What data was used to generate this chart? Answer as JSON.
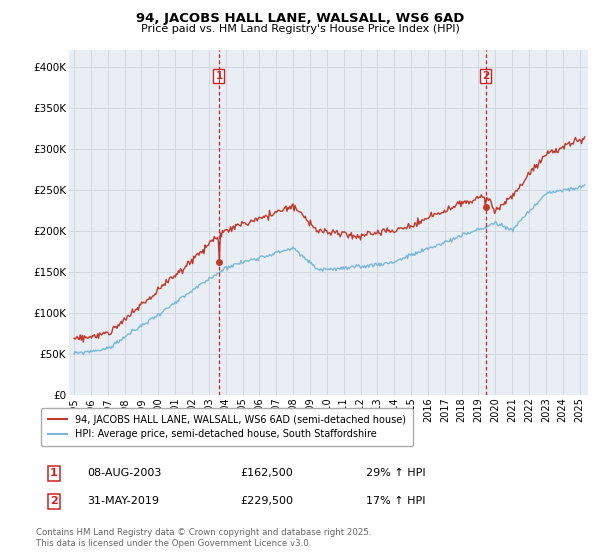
{
  "title1": "94, JACOBS HALL LANE, WALSALL, WS6 6AD",
  "title2": "Price paid vs. HM Land Registry's House Price Index (HPI)",
  "ylim": [
    0,
    420000
  ],
  "yticks": [
    0,
    50000,
    100000,
    150000,
    200000,
    250000,
    300000,
    350000,
    400000
  ],
  "ytick_labels": [
    "£0",
    "£50K",
    "£100K",
    "£150K",
    "£200K",
    "£250K",
    "£300K",
    "£350K",
    "£400K"
  ],
  "xlim_start": 1994.7,
  "xlim_end": 2025.5,
  "sale1_year": 2003.6,
  "sale1_price": 162500,
  "sale2_year": 2019.42,
  "sale2_price": 229500,
  "sale1_date": "08-AUG-2003",
  "sale1_price_str": "£162,500",
  "sale1_pct": "29% ↑ HPI",
  "sale2_date": "31-MAY-2019",
  "sale2_price_str": "£229,500",
  "sale2_pct": "17% ↑ HPI",
  "hpi_color": "#7ab8d9",
  "price_color": "#c0392b",
  "vline_color": "#cc2222",
  "grid_color": "#d0d8e0",
  "bg_color": "#e8eef4",
  "legend_line1": "94, JACOBS HALL LANE, WALSALL, WS6 6AD (semi-detached house)",
  "legend_line2": "HPI: Average price, semi-detached house, South Staffordshire",
  "footer": "Contains HM Land Registry data © Crown copyright and database right 2025.\nThis data is licensed under the Open Government Licence v3.0."
}
